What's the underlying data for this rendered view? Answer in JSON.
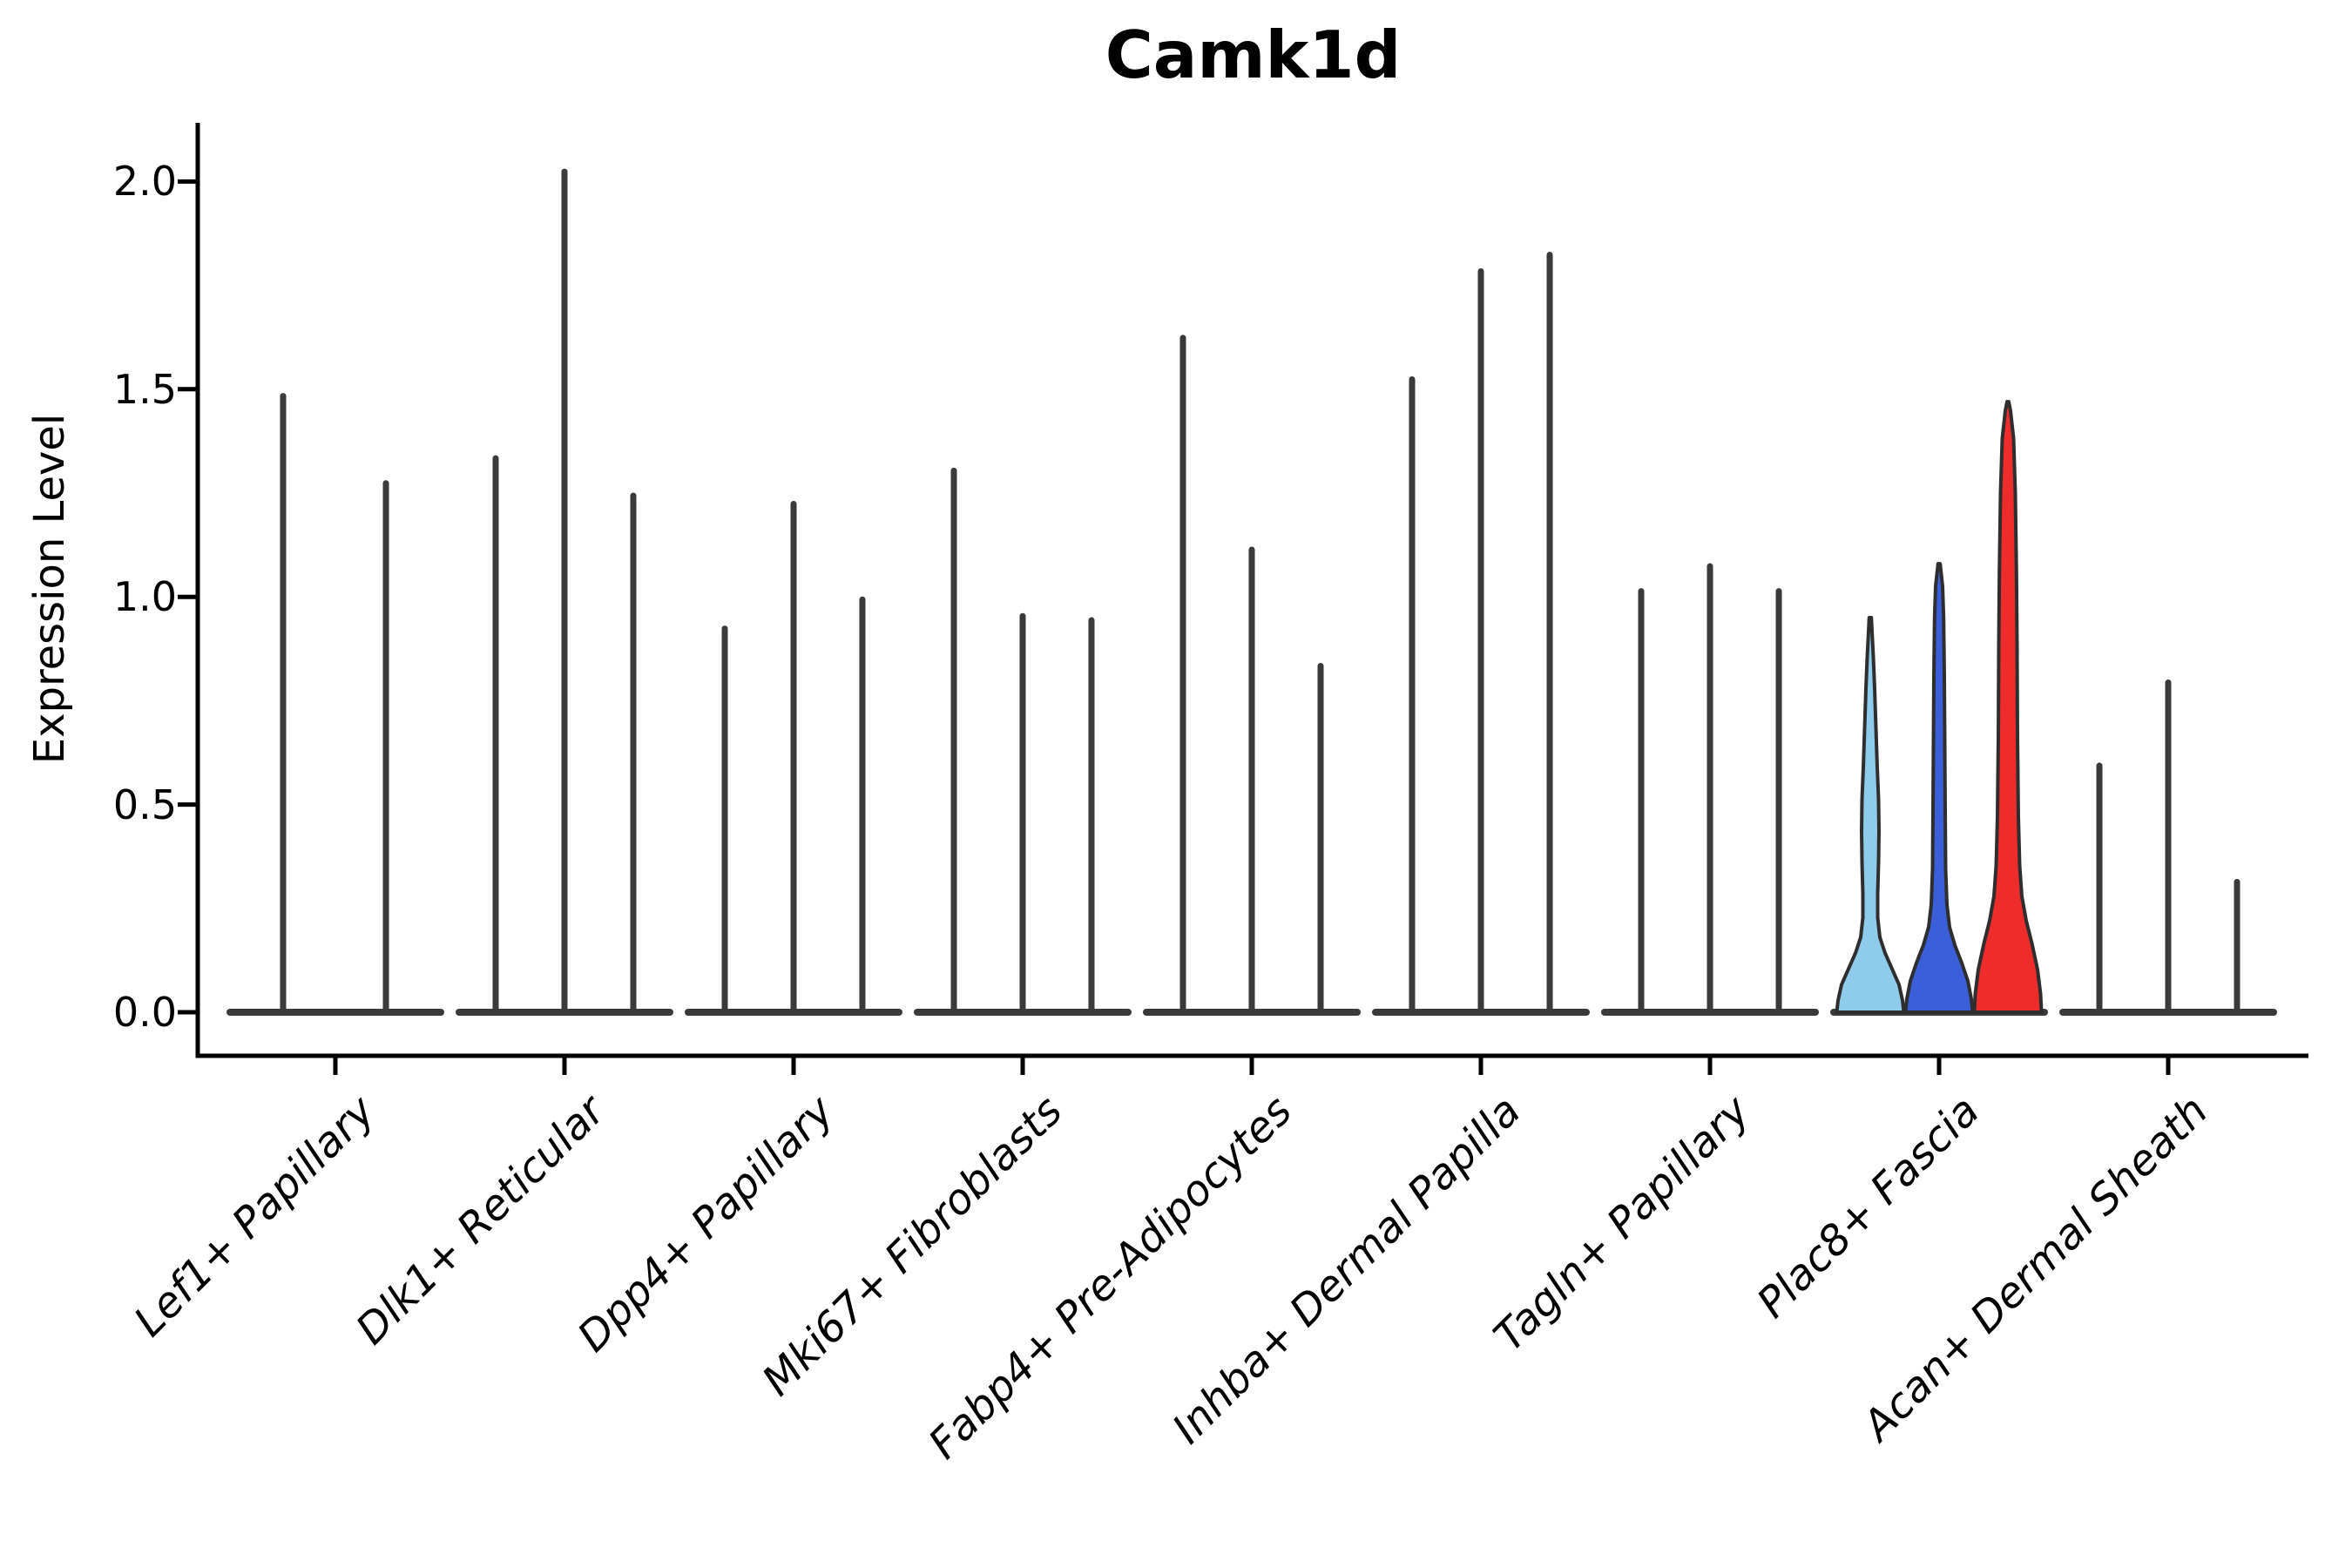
{
  "chart_data": {
    "type": "violin",
    "title": "Camk1d",
    "ylabel": "Expression Level",
    "xlabel": "",
    "ylim": [
      0,
      2.14
    ],
    "yticks": [
      "0.0",
      "0.5",
      "1.0",
      "1.5",
      "2.0"
    ],
    "ytick_values": [
      0.0,
      0.5,
      1.0,
      1.5,
      2.0
    ],
    "grid": false,
    "legend": "none",
    "n_groups": 9,
    "violins_per_group": 3,
    "groups": [
      {
        "label": "Lef1+ Papillary",
        "violins": [
          {
            "max": 1.49,
            "offset": -60,
            "fill": "none"
          },
          {
            "max": 0.0,
            "offset": 0,
            "fill": "none"
          },
          {
            "max": 1.28,
            "offset": 58,
            "fill": "none"
          }
        ]
      },
      {
        "label": "Dlk1+ Reticular",
        "violins": [
          {
            "max": 1.34,
            "offset": -79,
            "fill": "none"
          },
          {
            "max": 2.03,
            "offset": 0,
            "fill": "none"
          },
          {
            "max": 1.25,
            "offset": 79,
            "fill": "none"
          }
        ]
      },
      {
        "label": "Dpp4+ Papillary",
        "violins": [
          {
            "max": 0.93,
            "offset": -79,
            "fill": "none"
          },
          {
            "max": 1.23,
            "offset": 0,
            "fill": "none"
          },
          {
            "max": 1.0,
            "offset": 79,
            "fill": "none"
          }
        ]
      },
      {
        "label": "Mki67+ Fibroblasts",
        "violins": [
          {
            "max": 1.31,
            "offset": -79,
            "fill": "none"
          },
          {
            "max": 0.96,
            "offset": 0,
            "fill": "none"
          },
          {
            "max": 0.95,
            "offset": 79,
            "fill": "none"
          }
        ]
      },
      {
        "label": "Fabp4+ Pre-Adipocytes",
        "violins": [
          {
            "max": 1.63,
            "offset": -79,
            "fill": "none"
          },
          {
            "max": 1.12,
            "offset": 0,
            "fill": "none"
          },
          {
            "max": 0.84,
            "offset": 79,
            "fill": "none"
          }
        ]
      },
      {
        "label": "Inhba+ Dermal Papilla",
        "violins": [
          {
            "max": 1.53,
            "offset": -79,
            "fill": "none"
          },
          {
            "max": 1.79,
            "offset": 0,
            "fill": "none"
          },
          {
            "max": 1.83,
            "offset": 79,
            "fill": "none"
          }
        ]
      },
      {
        "label": "Tagln+ Papillary",
        "violins": [
          {
            "max": 1.02,
            "offset": -79,
            "fill": "none"
          },
          {
            "max": 1.08,
            "offset": 0,
            "fill": "none"
          },
          {
            "max": 1.02,
            "offset": 79,
            "fill": "none"
          }
        ]
      },
      {
        "label": "Plac8+ Fascia",
        "violins": [
          {
            "max": 0.95,
            "offset": -79,
            "fill": "#8FCBEA",
            "shape": "wide"
          },
          {
            "max": 1.08,
            "offset": 0,
            "fill": "#3B5FD8",
            "shape": "wide"
          },
          {
            "max": 1.47,
            "offset": 79,
            "fill": "#EE2C2C",
            "shape": "wide"
          }
        ]
      },
      {
        "label": "Acan+ Dermal Sheath",
        "violins": [
          {
            "max": 0.6,
            "offset": -79,
            "fill": "none"
          },
          {
            "max": 0.8,
            "offset": 0,
            "fill": "none"
          },
          {
            "max": 0.32,
            "offset": 79,
            "fill": "none"
          }
        ]
      }
    ],
    "colors": {
      "violin_line": "#3a3a3a",
      "violin_outline": "#2e2e2e",
      "axis": "#000000",
      "highlight_fills": [
        "#8FCBEA",
        "#3B5FD8",
        "#EE2C2C"
      ],
      "background": "#ffffff"
    }
  }
}
